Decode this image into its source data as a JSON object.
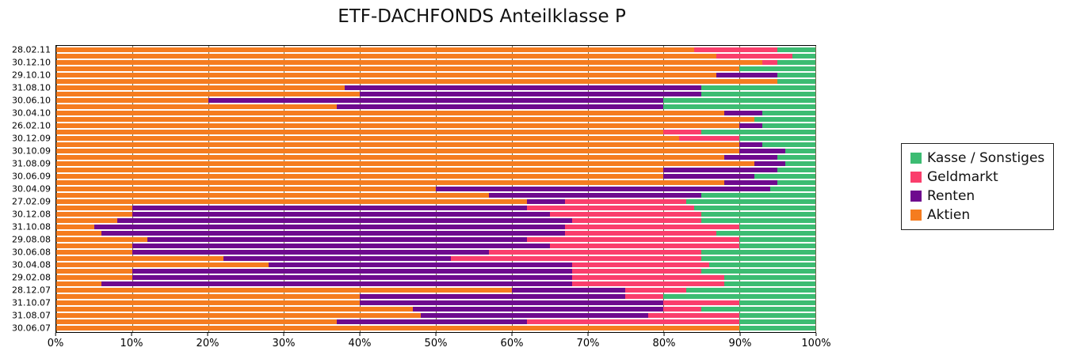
{
  "title": "ETF-DACHFONDS Anteilklasse P",
  "chart_data": {
    "type": "bar",
    "stacked": true,
    "orientation": "horizontal",
    "title": "ETF-DACHFONDS Anteilklasse P",
    "xlim": [
      0,
      100
    ],
    "grid": "vertical",
    "legend_position": "right",
    "x_ticks": [
      "0%",
      "10%",
      "20%",
      "30%",
      "40%",
      "50%",
      "60%",
      "70%",
      "80%",
      "90%",
      "100%"
    ],
    "legend": [
      "Kasse / Sonstiges",
      "Geldmarkt",
      "Renten",
      "Aktien"
    ],
    "series_order": [
      "Aktien",
      "Renten",
      "Geldmarkt",
      "Kasse / Sonstiges"
    ],
    "colors": {
      "Aktien": "#f57c1f",
      "Renten": "#6e0a8e",
      "Geldmarkt": "#fa3e6c",
      "Kasse / Sonstiges": "#3cbc72"
    },
    "rows": [
      {
        "label": "28.02.11",
        "values": [
          84,
          0,
          11,
          5
        ]
      },
      {
        "label": "",
        "values": [
          87,
          0,
          10,
          3
        ]
      },
      {
        "label": "30.12.10",
        "values": [
          93,
          0,
          2,
          5
        ]
      },
      {
        "label": "",
        "values": [
          90,
          0,
          0,
          10
        ]
      },
      {
        "label": "29.10.10",
        "values": [
          87,
          8,
          0,
          5
        ]
      },
      {
        "label": "",
        "values": [
          95,
          0,
          0,
          5
        ]
      },
      {
        "label": "31.08.10",
        "values": [
          38,
          47,
          0,
          15
        ]
      },
      {
        "label": "",
        "values": [
          40,
          45,
          0,
          15
        ]
      },
      {
        "label": "30.06.10",
        "values": [
          20,
          60,
          0,
          20
        ]
      },
      {
        "label": "",
        "values": [
          37,
          43,
          0,
          20
        ]
      },
      {
        "label": "30.04.10",
        "values": [
          88,
          5,
          0,
          7
        ]
      },
      {
        "label": "",
        "values": [
          92,
          0,
          0,
          8
        ]
      },
      {
        "label": "26.02.10",
        "values": [
          90,
          3,
          0,
          7
        ]
      },
      {
        "label": "",
        "values": [
          80,
          0,
          5,
          15
        ]
      },
      {
        "label": "30.12.09",
        "values": [
          82,
          0,
          8,
          10
        ]
      },
      {
        "label": "",
        "values": [
          90,
          3,
          0,
          7
        ]
      },
      {
        "label": "30.10.09",
        "values": [
          90,
          6,
          0,
          4
        ]
      },
      {
        "label": "",
        "values": [
          88,
          7,
          0,
          5
        ]
      },
      {
        "label": "31.08.09",
        "values": [
          92,
          4,
          0,
          4
        ]
      },
      {
        "label": "",
        "values": [
          80,
          15,
          0,
          5
        ]
      },
      {
        "label": "30.06.09",
        "values": [
          80,
          12,
          0,
          8
        ]
      },
      {
        "label": "",
        "values": [
          88,
          7,
          0,
          5
        ]
      },
      {
        "label": "30.04.09",
        "values": [
          50,
          44,
          0,
          6
        ]
      },
      {
        "label": "",
        "values": [
          57,
          28,
          0,
          15
        ]
      },
      {
        "label": "27.02.09",
        "values": [
          62,
          5,
          16,
          17
        ]
      },
      {
        "label": "",
        "values": [
          10,
          52,
          22,
          16
        ]
      },
      {
        "label": "30.12.08",
        "values": [
          10,
          55,
          20,
          15
        ]
      },
      {
        "label": "",
        "values": [
          8,
          60,
          17,
          15
        ]
      },
      {
        "label": "31.10.08",
        "values": [
          5,
          62,
          23,
          10
        ]
      },
      {
        "label": "",
        "values": [
          6,
          61,
          20,
          13
        ]
      },
      {
        "label": "29.08.08",
        "values": [
          12,
          50,
          28,
          10
        ]
      },
      {
        "label": "",
        "values": [
          10,
          55,
          25,
          10
        ]
      },
      {
        "label": "30.06.08",
        "values": [
          10,
          47,
          28,
          15
        ]
      },
      {
        "label": "",
        "values": [
          22,
          30,
          33,
          15
        ]
      },
      {
        "label": "30.04.08",
        "values": [
          28,
          40,
          18,
          14
        ]
      },
      {
        "label": "",
        "values": [
          10,
          58,
          17,
          15
        ]
      },
      {
        "label": "29.02.08",
        "values": [
          10,
          58,
          20,
          12
        ]
      },
      {
        "label": "",
        "values": [
          6,
          62,
          20,
          12
        ]
      },
      {
        "label": "28.12.07",
        "values": [
          60,
          15,
          8,
          17
        ]
      },
      {
        "label": "",
        "values": [
          40,
          35,
          5,
          20
        ]
      },
      {
        "label": "31.10.07",
        "values": [
          40,
          40,
          10,
          10
        ]
      },
      {
        "label": "",
        "values": [
          47,
          33,
          5,
          15
        ]
      },
      {
        "label": "31.08.07",
        "values": [
          48,
          30,
          12,
          10
        ]
      },
      {
        "label": "",
        "values": [
          37,
          25,
          28,
          10
        ]
      },
      {
        "label": "30.06.07",
        "values": [
          90,
          0,
          0,
          10
        ]
      }
    ]
  }
}
